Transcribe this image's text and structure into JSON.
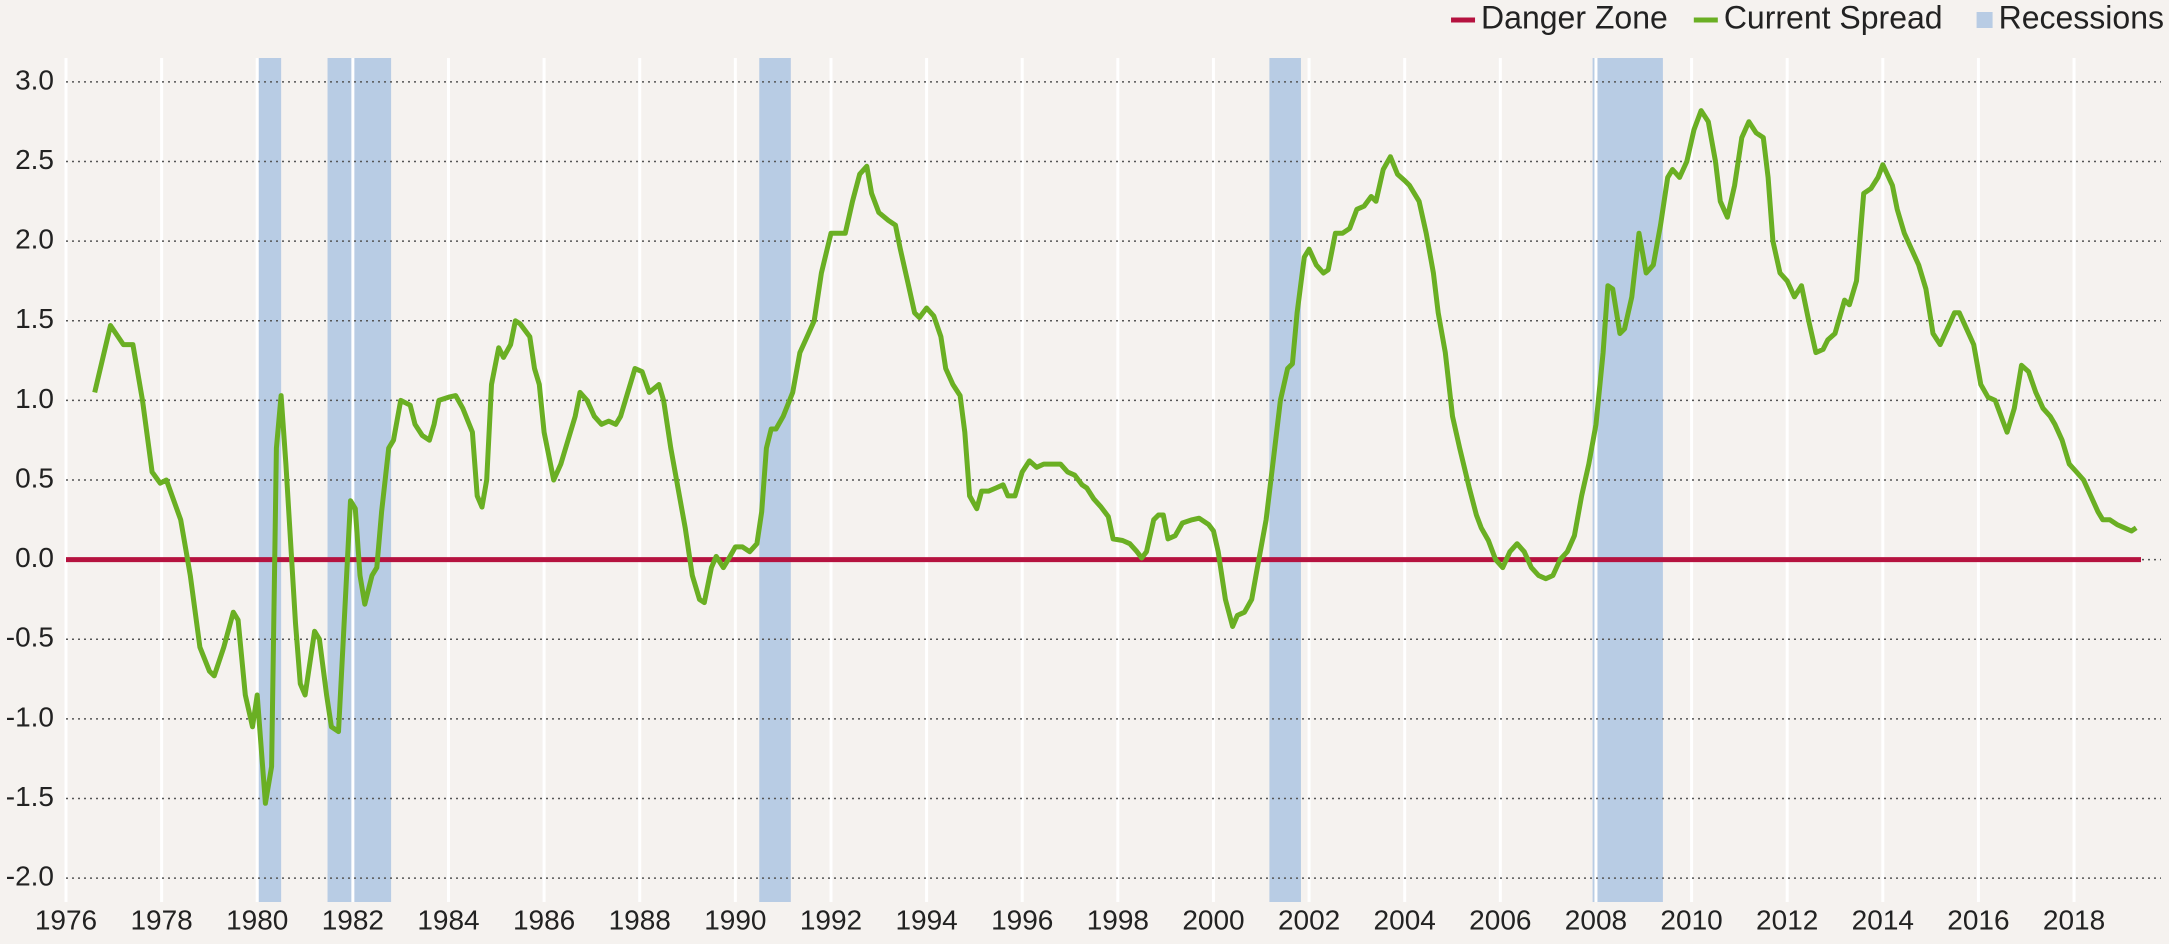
{
  "chart_data": {
    "type": "line",
    "x": [
      1976.6,
      1976.93,
      1977.2,
      1977.4,
      1977.6,
      1977.8,
      1977.97,
      1978.1,
      1978.4,
      1978.6,
      1978.8,
      1979.0,
      1979.1,
      1979.3,
      1979.5,
      1979.6,
      1979.75,
      1979.9,
      1980.0,
      1980.17,
      1980.3,
      1980.4,
      1980.5,
      1980.6,
      1980.8,
      1980.9,
      1981.0,
      1981.2,
      1981.3,
      1981.45,
      1981.55,
      1981.7,
      1981.8,
      1981.95,
      1982.05,
      1982.15,
      1982.25,
      1982.4,
      1982.5,
      1982.6,
      1982.75,
      1982.85,
      1983.0,
      1983.2,
      1983.3,
      1983.45,
      1983.6,
      1983.7,
      1983.8,
      1984.0,
      1984.15,
      1984.3,
      1984.5,
      1984.6,
      1984.7,
      1984.8,
      1984.9,
      1985.05,
      1985.15,
      1985.3,
      1985.4,
      1985.5,
      1985.7,
      1985.8,
      1985.9,
      1986.0,
      1986.2,
      1986.35,
      1986.5,
      1986.65,
      1986.75,
      1986.9,
      1987.05,
      1987.2,
      1987.35,
      1987.5,
      1987.6,
      1987.75,
      1987.9,
      1988.05,
      1988.2,
      1988.4,
      1988.5,
      1988.65,
      1988.8,
      1988.95,
      1989.1,
      1989.25,
      1989.35,
      1989.5,
      1989.6,
      1989.75,
      1989.85,
      1990.0,
      1990.15,
      1990.3,
      1990.45,
      1990.55,
      1990.65,
      1990.75,
      1990.85,
      1991.0,
      1991.2,
      1991.35,
      1991.5,
      1991.65,
      1991.8,
      1992.0,
      1992.15,
      1992.3,
      1992.45,
      1992.6,
      1992.75,
      1992.85,
      1993.0,
      1993.2,
      1993.35,
      1993.45,
      1993.6,
      1993.75,
      1993.85,
      1994.0,
      1994.15,
      1994.3,
      1994.4,
      1994.55,
      1994.7,
      1994.8,
      1994.9,
      1995.05,
      1995.15,
      1995.3,
      1995.45,
      1995.6,
      1995.7,
      1995.85,
      1996.0,
      1996.15,
      1996.3,
      1996.45,
      1996.65,
      1996.8,
      1996.95,
      1997.1,
      1997.25,
      1997.35,
      1997.5,
      1997.65,
      1997.8,
      1997.9,
      1998.1,
      1998.25,
      1998.4,
      1998.5,
      1998.6,
      1998.75,
      1998.85,
      1998.95,
      1999.05,
      1999.2,
      1999.35,
      1999.55,
      1999.7,
      1999.9,
      2000.0,
      2000.1,
      2000.25,
      2000.4,
      2000.5,
      2000.65,
      2000.8,
      2000.9,
      2001.1,
      2001.25,
      2001.4,
      2001.55,
      2001.65,
      2001.75,
      2001.9,
      2002.0,
      2002.15,
      2002.3,
      2002.4,
      2002.55,
      2002.7,
      2002.85,
      2003.0,
      2003.15,
      2003.3,
      2003.4,
      2003.55,
      2003.7,
      2003.85,
      2004.0,
      2004.1,
      2004.3,
      2004.45,
      2004.6,
      2004.7,
      2004.85,
      2005.0,
      2005.15,
      2005.35,
      2005.5,
      2005.6,
      2005.75,
      2005.9,
      2006.05,
      2006.2,
      2006.35,
      2006.5,
      2006.65,
      2006.8,
      2006.95,
      2007.1,
      2007.25,
      2007.4,
      2007.55,
      2007.7,
      2007.85,
      2008.0,
      2008.15,
      2008.25,
      2008.35,
      2008.5,
      2008.6,
      2008.75,
      2008.9,
      2009.05,
      2009.2,
      2009.35,
      2009.5,
      2009.6,
      2009.75,
      2009.9,
      2010.05,
      2010.2,
      2010.35,
      2010.5,
      2010.6,
      2010.75,
      2010.9,
      2011.05,
      2011.2,
      2011.35,
      2011.5,
      2011.6,
      2011.7,
      2011.85,
      2012.0,
      2012.15,
      2012.3,
      2012.45,
      2012.6,
      2012.75,
      2012.85,
      2013.0,
      2013.2,
      2013.3,
      2013.45,
      2013.6,
      2013.75,
      2013.9,
      2014.0,
      2014.2,
      2014.3,
      2014.45,
      2014.6,
      2014.75,
      2014.9,
      2015.05,
      2015.2,
      2015.35,
      2015.5,
      2015.6,
      2015.75,
      2015.9,
      2016.05,
      2016.2,
      2016.35,
      2016.5,
      2016.6,
      2016.75,
      2016.9,
      2017.05,
      2017.2,
      2017.35,
      2017.5,
      2017.6,
      2017.75,
      2017.9,
      2018.05,
      2018.2,
      2018.35,
      2018.5,
      2018.6,
      2018.75,
      2018.9,
      2019.05,
      2019.2,
      2019.3
    ],
    "series": [
      {
        "name": "Current Spread",
        "color": "#6aaf23",
        "values": [
          1.05,
          1.47,
          1.35,
          1.35,
          1.0,
          0.55,
          0.48,
          0.5,
          0.25,
          -0.1,
          -0.55,
          -0.7,
          -0.73,
          -0.55,
          -0.33,
          -0.38,
          -0.85,
          -1.05,
          -0.85,
          -1.53,
          -1.3,
          0.7,
          1.03,
          0.6,
          -0.4,
          -0.78,
          -0.85,
          -0.45,
          -0.5,
          -0.85,
          -1.05,
          -1.08,
          -0.5,
          0.37,
          0.32,
          -0.1,
          -0.28,
          -0.1,
          -0.05,
          0.3,
          0.7,
          0.75,
          1.0,
          0.97,
          0.85,
          0.78,
          0.75,
          0.85,
          1.0,
          1.02,
          1.03,
          0.95,
          0.8,
          0.4,
          0.33,
          0.5,
          1.1,
          1.33,
          1.27,
          1.35,
          1.5,
          1.48,
          1.4,
          1.2,
          1.1,
          0.8,
          0.5,
          0.6,
          0.75,
          0.9,
          1.05,
          1.0,
          0.9,
          0.85,
          0.87,
          0.85,
          0.9,
          1.05,
          1.2,
          1.18,
          1.05,
          1.1,
          1.0,
          0.7,
          0.45,
          0.2,
          -0.1,
          -0.25,
          -0.27,
          -0.05,
          0.02,
          -0.05,
          0.0,
          0.08,
          0.08,
          0.05,
          0.1,
          0.3,
          0.7,
          0.82,
          0.82,
          0.9,
          1.05,
          1.3,
          1.4,
          1.5,
          1.8,
          2.05,
          2.05,
          2.05,
          2.25,
          2.42,
          2.47,
          2.3,
          2.18,
          2.13,
          2.1,
          1.95,
          1.75,
          1.55,
          1.52,
          1.58,
          1.53,
          1.4,
          1.2,
          1.1,
          1.03,
          0.8,
          0.4,
          0.32,
          0.43,
          0.43,
          0.45,
          0.47,
          0.4,
          0.4,
          0.55,
          0.62,
          0.58,
          0.6,
          0.6,
          0.6,
          0.55,
          0.53,
          0.47,
          0.45,
          0.38,
          0.33,
          0.27,
          0.13,
          0.12,
          0.1,
          0.05,
          0.01,
          0.05,
          0.25,
          0.28,
          0.28,
          0.13,
          0.15,
          0.23,
          0.25,
          0.26,
          0.22,
          0.18,
          0.05,
          -0.25,
          -0.42,
          -0.35,
          -0.33,
          -0.25,
          -0.08,
          0.25,
          0.62,
          1.0,
          1.2,
          1.23,
          1.55,
          1.9,
          1.95,
          1.85,
          1.8,
          1.82,
          2.05,
          2.05,
          2.08,
          2.2,
          2.22,
          2.28,
          2.25,
          2.45,
          2.53,
          2.42,
          2.38,
          2.35,
          2.25,
          2.05,
          1.8,
          1.55,
          1.3,
          0.9,
          0.7,
          0.45,
          0.28,
          0.2,
          0.12,
          0.0,
          -0.05,
          0.05,
          0.1,
          0.05,
          -0.05,
          -0.1,
          -0.12,
          -0.1,
          0.0,
          0.05,
          0.15,
          0.4,
          0.6,
          0.85,
          1.3,
          1.72,
          1.7,
          1.42,
          1.45,
          1.65,
          2.05,
          1.8,
          1.85,
          2.1,
          2.4,
          2.45,
          2.4,
          2.5,
          2.7,
          2.82,
          2.75,
          2.5,
          2.25,
          2.15,
          2.35,
          2.65,
          2.75,
          2.68,
          2.65,
          2.4,
          2.0,
          1.8,
          1.75,
          1.65,
          1.72,
          1.5,
          1.3,
          1.32,
          1.38,
          1.42,
          1.63,
          1.6,
          1.75,
          2.3,
          2.33,
          2.4,
          2.48,
          2.35,
          2.2,
          2.05,
          1.95,
          1.85,
          1.7,
          1.42,
          1.35,
          1.45,
          1.55,
          1.55,
          1.45,
          1.35,
          1.1,
          1.02,
          1.0,
          0.88,
          0.8,
          0.95,
          1.22,
          1.18,
          1.05,
          0.95,
          0.9,
          0.85,
          0.75,
          0.6,
          0.55,
          0.5,
          0.4,
          0.3,
          0.25,
          0.25,
          0.22,
          0.2,
          0.18,
          0.2
        ]
      }
    ],
    "danger_zone": {
      "name": "Danger Zone",
      "color": "#b5123f",
      "value": 0
    },
    "recessions": {
      "name": "Recessions",
      "color": "#b8cce4",
      "spans": [
        [
          1980.0,
          1980.5
        ],
        [
          1981.47,
          1982.8
        ],
        [
          1990.5,
          1991.16
        ],
        [
          2001.17,
          2001.83
        ],
        [
          2007.93,
          2009.4
        ]
      ]
    },
    "xlim": [
      1976,
      2019.4
    ],
    "xticks": [
      1976,
      1978,
      1980,
      1982,
      1984,
      1986,
      1988,
      1990,
      1992,
      1994,
      1996,
      1998,
      2000,
      2002,
      2004,
      2006,
      2008,
      2010,
      2012,
      2014,
      2016,
      2018
    ],
    "ylim": [
      -2.15,
      3.15
    ],
    "yticks": [
      {
        "value": 3,
        "label": "3.0"
      },
      {
        "value": 2.5,
        "label": "2.5"
      },
      {
        "value": 2,
        "label": "2.0"
      },
      {
        "value": 1.5,
        "label": "1.5"
      },
      {
        "value": 1,
        "label": "1.0"
      },
      {
        "value": 0.5,
        "label": "0.5"
      },
      {
        "value": 0,
        "label": "0.0"
      },
      {
        "value": -0.5,
        "label": "-0.5"
      },
      {
        "value": -1,
        "label": "-1.0"
      },
      {
        "value": -1.5,
        "label": "-1.5"
      },
      {
        "value": -2,
        "label": "-2.0"
      }
    ],
    "grid": true
  }
}
